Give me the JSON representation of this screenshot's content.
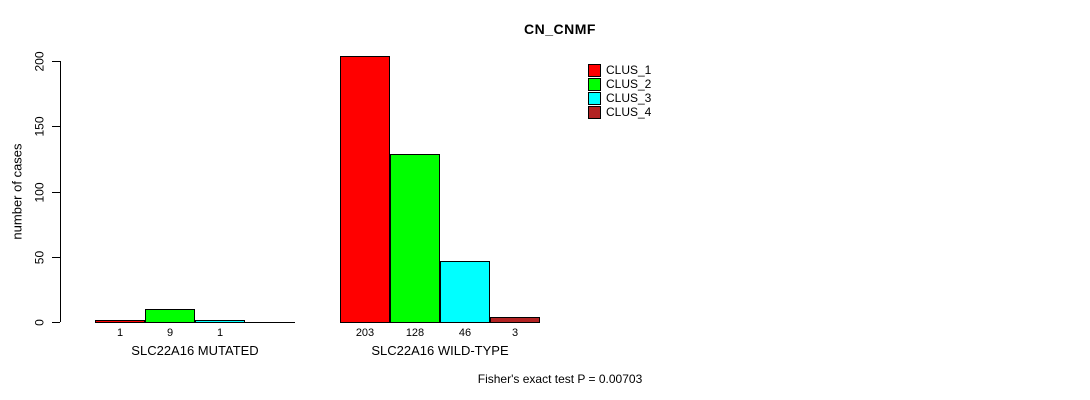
{
  "chart_data": {
    "type": "bar",
    "title": "CN_CNMF",
    "ylabel": "number of cases",
    "ylim": [
      0,
      203
    ],
    "yticks": [
      0,
      50,
      100,
      150,
      200
    ],
    "grid": false,
    "legend_position": "top-right-inside",
    "series_names": [
      "CLUS_1",
      "CLUS_2",
      "CLUS_3",
      "CLUS_4"
    ],
    "series_colors": [
      "#FF0000",
      "#00FF00",
      "#00FFFF",
      "#B22222"
    ],
    "groups": [
      {
        "label": "SLC22A16 MUTATED",
        "values": [
          1,
          9,
          1,
          0
        ],
        "value_labels": [
          "1",
          "9",
          "1",
          ""
        ]
      },
      {
        "label": "SLC22A16 WILD-TYPE",
        "values": [
          203,
          128,
          46,
          3
        ],
        "value_labels": [
          "203",
          "128",
          "46",
          "3"
        ]
      }
    ],
    "annotation": "Fisher's exact test P = 0.00703"
  },
  "legend": {
    "items": [
      {
        "label": "CLUS_1",
        "color": "#FF0000"
      },
      {
        "label": "CLUS_2",
        "color": "#00FF00"
      },
      {
        "label": "CLUS_3",
        "color": "#00FFFF"
      },
      {
        "label": "CLUS_4",
        "color": "#B22222"
      }
    ]
  }
}
